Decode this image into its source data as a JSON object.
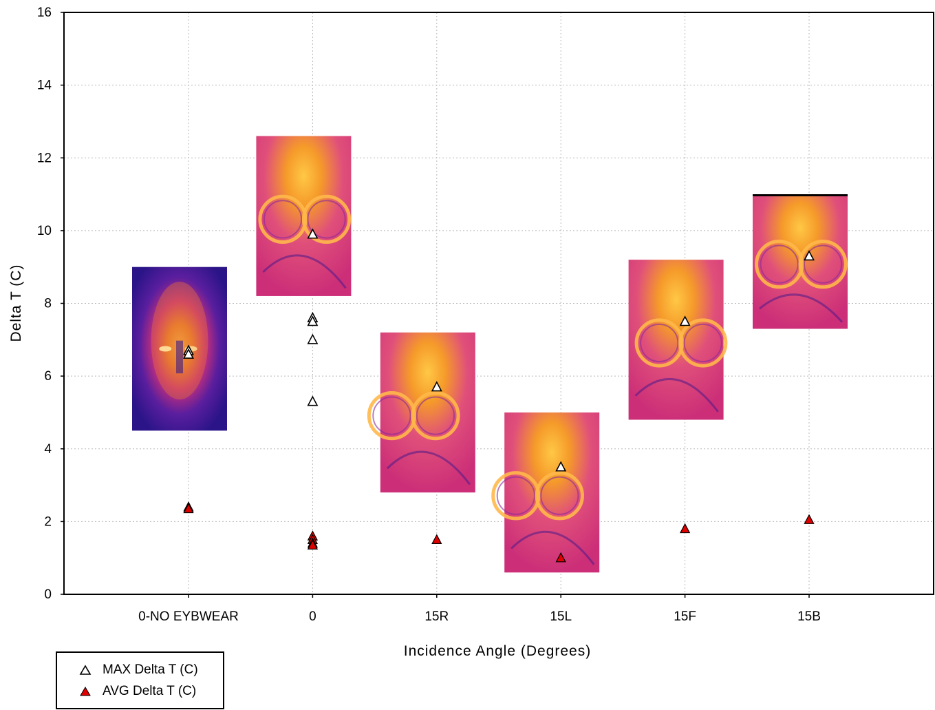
{
  "chart_data": {
    "type": "scatter",
    "xlabel": "Incidence Angle (Degrees)",
    "ylabel": "Delta T (C)",
    "categories": [
      "0-NO EYBWEAR",
      "0",
      "15R",
      "15L",
      "15F",
      "15B"
    ],
    "ylim": [
      0,
      16
    ],
    "yticks": [
      0,
      2,
      4,
      6,
      8,
      10,
      12,
      14,
      16
    ],
    "grid": true,
    "legend_position": "bottom-left",
    "series": [
      {
        "name": "MAX Delta T (C)",
        "marker": "open-triangle",
        "color": "#000000",
        "points": [
          {
            "category": "0-NO EYBWEAR",
            "y": 6.7
          },
          {
            "category": "0-NO EYBWEAR",
            "y": 6.6
          },
          {
            "category": "0",
            "y": 9.9
          },
          {
            "category": "0",
            "y": 7.6
          },
          {
            "category": "0",
            "y": 7.5
          },
          {
            "category": "0",
            "y": 7.0
          },
          {
            "category": "0",
            "y": 5.3
          },
          {
            "category": "15R",
            "y": 5.7
          },
          {
            "category": "15L",
            "y": 3.5
          },
          {
            "category": "15F",
            "y": 7.5
          },
          {
            "category": "15B",
            "y": 9.3
          }
        ]
      },
      {
        "name": "AVG Delta T (C)",
        "marker": "filled-triangle",
        "color": "#e00000",
        "points": [
          {
            "category": "0-NO EYBWEAR",
            "y": 2.4
          },
          {
            "category": "0-NO EYBWEAR",
            "y": 2.35
          },
          {
            "category": "0",
            "y": 1.6
          },
          {
            "category": "0",
            "y": 1.5
          },
          {
            "category": "0",
            "y": 1.4
          },
          {
            "category": "0",
            "y": 1.35
          },
          {
            "category": "15R",
            "y": 1.5
          },
          {
            "category": "15L",
            "y": 1.0
          },
          {
            "category": "15F",
            "y": 1.8
          },
          {
            "category": "15B",
            "y": 2.05
          }
        ]
      }
    ],
    "thermal_insets": [
      {
        "category": "0-NO EYBWEAR",
        "style": "face",
        "y_top": 9.0,
        "y_bottom": 4.5
      },
      {
        "category": "0",
        "style": "goggles",
        "y_top": 12.6,
        "y_bottom": 8.2
      },
      {
        "category": "15R",
        "style": "goggles",
        "y_top": 7.2,
        "y_bottom": 2.8
      },
      {
        "category": "15L",
        "style": "goggles",
        "y_top": 5.0,
        "y_bottom": 0.6
      },
      {
        "category": "15F",
        "style": "goggles",
        "y_top": 9.2,
        "y_bottom": 4.8
      },
      {
        "category": "15B",
        "style": "goggles",
        "y_top": 11.0,
        "y_bottom": 7.3
      }
    ]
  },
  "colors": {
    "plot_border": "#000000",
    "grid": "#b8b8b8",
    "avg_fill": "#e00000",
    "thermal_face_outer": "#3a1a9a",
    "thermal_face_mid": "#c02a8a",
    "thermal_face_hot": "#f5a020",
    "thermal_bg": "#d8327a",
    "thermal_hot": "#ffb23a"
  }
}
